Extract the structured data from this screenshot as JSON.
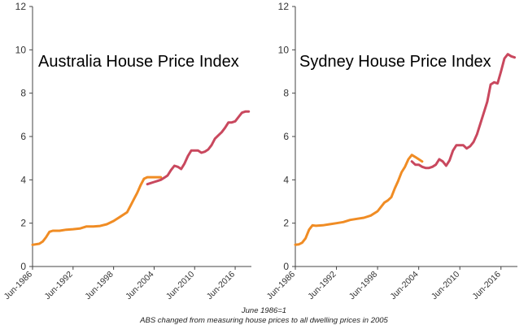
{
  "footnote": {
    "line1": "June 1986=1",
    "line2": "ABS changed from measuring house prices to all dwelling prices in 2005"
  },
  "chart_data": [
    {
      "type": "line",
      "title": "Australia House Price Index",
      "ylim": [
        0,
        12
      ],
      "yticks": [
        0,
        2,
        4,
        6,
        8,
        10,
        12
      ],
      "xlim": [
        1986.5,
        2018.9
      ],
      "xtick_values": [
        1986.5,
        1992.5,
        1998.5,
        2004.5,
        2010.5,
        2016.5
      ],
      "xtick_labels": [
        "Jun-1986",
        "Jun-1992",
        "Jun-1998",
        "Jun-2004",
        "Jun-2010",
        "Jun-2016"
      ],
      "grid": false,
      "series": [
        {
          "color": "#F08C24",
          "x": [
            1986.5,
            1987.5,
            1988.0,
            1988.5,
            1989.0,
            1989.5,
            1990.5,
            1991.5,
            1992.5,
            1993.5,
            1994.5,
            1995.5,
            1996.5,
            1997.5,
            1998.5,
            1999.5,
            2000.5,
            2001.0,
            2001.5,
            2002.0,
            2002.5,
            2003.0,
            2003.5,
            2004.0,
            2004.5,
            2005.0,
            2005.5
          ],
          "y": [
            1.0,
            1.05,
            1.15,
            1.35,
            1.6,
            1.65,
            1.65,
            1.7,
            1.72,
            1.75,
            1.85,
            1.85,
            1.87,
            1.95,
            2.1,
            2.3,
            2.5,
            2.8,
            3.1,
            3.4,
            3.75,
            4.05,
            4.12,
            4.12,
            4.12,
            4.12,
            4.12
          ]
        },
        {
          "color": "#C9485E",
          "x": [
            2003.5,
            2004.0,
            2004.5,
            2005.0,
            2005.5,
            2006.0,
            2006.5,
            2007.0,
            2007.5,
            2008.0,
            2008.5,
            2009.0,
            2009.5,
            2010.0,
            2010.5,
            2011.0,
            2011.5,
            2012.0,
            2012.5,
            2013.0,
            2013.5,
            2014.0,
            2014.5,
            2015.0,
            2015.5,
            2016.0,
            2016.5,
            2017.0,
            2017.5,
            2018.0,
            2018.5
          ],
          "y": [
            3.8,
            3.85,
            3.9,
            3.95,
            4.0,
            4.1,
            4.2,
            4.45,
            4.65,
            4.6,
            4.5,
            4.75,
            5.1,
            5.35,
            5.35,
            5.35,
            5.25,
            5.3,
            5.4,
            5.6,
            5.9,
            6.05,
            6.2,
            6.4,
            6.65,
            6.65,
            6.7,
            6.9,
            7.1,
            7.15,
            7.15
          ]
        }
      ]
    },
    {
      "type": "line",
      "title": "Sydney House Price Index",
      "ylim": [
        0,
        12
      ],
      "yticks": [
        0,
        2,
        4,
        6,
        8,
        10,
        12
      ],
      "xlim": [
        1986.5,
        2018.9
      ],
      "xtick_values": [
        1986.5,
        1992.5,
        1998.5,
        2004.5,
        2010.5,
        2016.5
      ],
      "xtick_labels": [
        "Jun-1986",
        "Jun-1992",
        "Jun-1998",
        "Jun-2004",
        "Jun-2010",
        "Jun-2016"
      ],
      "grid": false,
      "series": [
        {
          "color": "#F08C24",
          "x": [
            1986.5,
            1987.0,
            1987.5,
            1988.0,
            1988.5,
            1989.0,
            1989.5,
            1990.5,
            1991.5,
            1992.5,
            1993.5,
            1994.5,
            1995.5,
            1996.5,
            1997.5,
            1998.5,
            1999.0,
            1999.5,
            2000.0,
            2000.5,
            2001.0,
            2001.5,
            2002.0,
            2002.5,
            2003.0,
            2003.5,
            2004.0,
            2004.5,
            2005.0
          ],
          "y": [
            1.0,
            1.02,
            1.1,
            1.3,
            1.7,
            1.9,
            1.88,
            1.9,
            1.95,
            2.0,
            2.05,
            2.15,
            2.2,
            2.25,
            2.35,
            2.55,
            2.75,
            2.95,
            3.05,
            3.2,
            3.6,
            3.95,
            4.35,
            4.6,
            4.95,
            5.15,
            5.05,
            4.95,
            4.85
          ]
        },
        {
          "color": "#C9485E",
          "x": [
            2003.5,
            2004.0,
            2004.5,
            2005.0,
            2005.5,
            2006.0,
            2006.5,
            2007.0,
            2007.5,
            2008.0,
            2008.5,
            2009.0,
            2009.5,
            2010.0,
            2010.5,
            2011.0,
            2011.5,
            2012.0,
            2012.5,
            2013.0,
            2013.5,
            2014.0,
            2014.5,
            2015.0,
            2015.5,
            2016.0,
            2016.5,
            2017.0,
            2017.5,
            2018.0,
            2018.5
          ],
          "y": [
            4.85,
            4.7,
            4.7,
            4.6,
            4.55,
            4.55,
            4.6,
            4.7,
            4.95,
            4.85,
            4.65,
            4.9,
            5.35,
            5.6,
            5.6,
            5.6,
            5.45,
            5.55,
            5.75,
            6.1,
            6.6,
            7.1,
            7.6,
            8.4,
            8.5,
            8.45,
            9.0,
            9.6,
            9.8,
            9.7,
            9.65
          ]
        }
      ]
    }
  ]
}
